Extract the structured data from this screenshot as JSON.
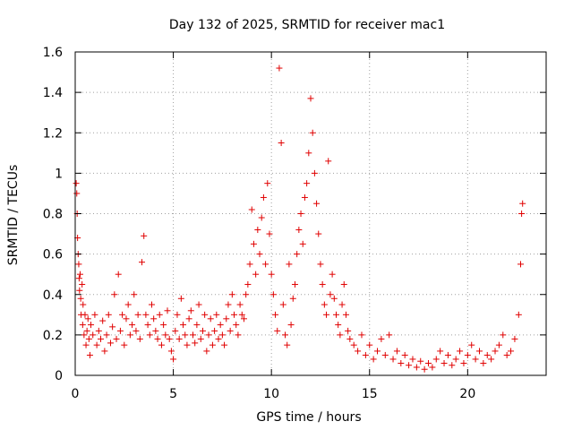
{
  "chart_data": {
    "type": "scatter",
    "title": "Day 132 of 2025, SRMTID for receiver mac1",
    "xlabel": "GPS time / hours",
    "ylabel": "SRMTID / TECUs",
    "xlim": [
      0,
      24
    ],
    "ylim": [
      0,
      1.6
    ],
    "xticks": [
      "0",
      "5",
      "10",
      "15",
      "20"
    ],
    "yticks": [
      "0",
      "0.2",
      "0.4",
      "0.6",
      "0.8",
      "1",
      "1.2",
      "1.4",
      "1.6"
    ],
    "grid": true,
    "marker": "+",
    "color": "#e00000",
    "series": [
      {
        "name": "SRMTID mac1",
        "points": [
          [
            0.05,
            0.95
          ],
          [
            0.08,
            0.9
          ],
          [
            0.1,
            0.8
          ],
          [
            0.12,
            0.68
          ],
          [
            0.15,
            0.6
          ],
          [
            0.18,
            0.55
          ],
          [
            0.2,
            0.48
          ],
          [
            0.22,
            0.42
          ],
          [
            0.25,
            0.5
          ],
          [
            0.28,
            0.38
          ],
          [
            0.3,
            0.3
          ],
          [
            0.35,
            0.45
          ],
          [
            0.38,
            0.25
          ],
          [
            0.4,
            0.35
          ],
          [
            0.45,
            0.2
          ],
          [
            0.5,
            0.3
          ],
          [
            0.55,
            0.15
          ],
          [
            0.6,
            0.22
          ],
          [
            0.65,
            0.28
          ],
          [
            0.7,
            0.18
          ],
          [
            0.75,
            0.1
          ],
          [
            0.8,
            0.25
          ],
          [
            0.9,
            0.2
          ],
          [
            1.0,
            0.3
          ],
          [
            1.1,
            0.15
          ],
          [
            1.2,
            0.22
          ],
          [
            1.3,
            0.18
          ],
          [
            1.4,
            0.27
          ],
          [
            1.5,
            0.12
          ],
          [
            1.6,
            0.2
          ],
          [
            1.7,
            0.3
          ],
          [
            1.8,
            0.16
          ],
          [
            1.9,
            0.24
          ],
          [
            2.0,
            0.4
          ],
          [
            2.1,
            0.18
          ],
          [
            2.2,
            0.5
          ],
          [
            2.3,
            0.22
          ],
          [
            2.4,
            0.3
          ],
          [
            2.5,
            0.15
          ],
          [
            2.6,
            0.28
          ],
          [
            2.7,
            0.35
          ],
          [
            2.8,
            0.2
          ],
          [
            2.9,
            0.25
          ],
          [
            3.0,
            0.4
          ],
          [
            3.1,
            0.22
          ],
          [
            3.2,
            0.3
          ],
          [
            3.3,
            0.18
          ],
          [
            3.4,
            0.56
          ],
          [
            3.5,
            0.69
          ],
          [
            3.6,
            0.3
          ],
          [
            3.7,
            0.25
          ],
          [
            3.8,
            0.2
          ],
          [
            3.9,
            0.35
          ],
          [
            4.0,
            0.28
          ],
          [
            4.1,
            0.22
          ],
          [
            4.2,
            0.18
          ],
          [
            4.3,
            0.3
          ],
          [
            4.4,
            0.15
          ],
          [
            4.5,
            0.25
          ],
          [
            4.6,
            0.2
          ],
          [
            4.7,
            0.32
          ],
          [
            4.8,
            0.18
          ],
          [
            4.9,
            0.12
          ],
          [
            5.0,
            0.08
          ],
          [
            5.1,
            0.22
          ],
          [
            5.2,
            0.3
          ],
          [
            5.3,
            0.18
          ],
          [
            5.4,
            0.38
          ],
          [
            5.5,
            0.25
          ],
          [
            5.6,
            0.2
          ],
          [
            5.7,
            0.15
          ],
          [
            5.8,
            0.28
          ],
          [
            5.9,
            0.32
          ],
          [
            6.0,
            0.2
          ],
          [
            6.1,
            0.16
          ],
          [
            6.2,
            0.25
          ],
          [
            6.3,
            0.35
          ],
          [
            6.4,
            0.18
          ],
          [
            6.5,
            0.22
          ],
          [
            6.6,
            0.3
          ],
          [
            6.7,
            0.12
          ],
          [
            6.8,
            0.2
          ],
          [
            6.9,
            0.28
          ],
          [
            7.0,
            0.15
          ],
          [
            7.1,
            0.22
          ],
          [
            7.2,
            0.3
          ],
          [
            7.3,
            0.18
          ],
          [
            7.4,
            0.25
          ],
          [
            7.5,
            0.2
          ],
          [
            7.6,
            0.15
          ],
          [
            7.7,
            0.28
          ],
          [
            7.8,
            0.35
          ],
          [
            7.9,
            0.22
          ],
          [
            8.0,
            0.4
          ],
          [
            8.1,
            0.3
          ],
          [
            8.2,
            0.25
          ],
          [
            8.3,
            0.2
          ],
          [
            8.4,
            0.35
          ],
          [
            8.5,
            0.3
          ],
          [
            8.6,
            0.28
          ],
          [
            8.7,
            0.4
          ],
          [
            8.8,
            0.45
          ],
          [
            8.9,
            0.55
          ],
          [
            9.0,
            0.82
          ],
          [
            9.1,
            0.65
          ],
          [
            9.2,
            0.5
          ],
          [
            9.3,
            0.72
          ],
          [
            9.4,
            0.6
          ],
          [
            9.5,
            0.78
          ],
          [
            9.6,
            0.88
          ],
          [
            9.7,
            0.55
          ],
          [
            9.8,
            0.95
          ],
          [
            9.9,
            0.7
          ],
          [
            10.0,
            0.5
          ],
          [
            10.1,
            0.4
          ],
          [
            10.2,
            0.3
          ],
          [
            10.3,
            0.22
          ],
          [
            10.4,
            1.52
          ],
          [
            10.5,
            1.15
          ],
          [
            10.6,
            0.35
          ],
          [
            10.7,
            0.2
          ],
          [
            10.8,
            0.15
          ],
          [
            10.9,
            0.55
          ],
          [
            11.0,
            0.25
          ],
          [
            11.1,
            0.38
          ],
          [
            11.2,
            0.45
          ],
          [
            11.3,
            0.6
          ],
          [
            11.4,
            0.72
          ],
          [
            11.5,
            0.8
          ],
          [
            11.6,
            0.65
          ],
          [
            11.7,
            0.88
          ],
          [
            11.8,
            0.95
          ],
          [
            11.9,
            1.1
          ],
          [
            12.0,
            1.37
          ],
          [
            12.1,
            1.2
          ],
          [
            12.2,
            1.0
          ],
          [
            12.3,
            0.85
          ],
          [
            12.4,
            0.7
          ],
          [
            12.5,
            0.55
          ],
          [
            12.6,
            0.45
          ],
          [
            12.7,
            0.35
          ],
          [
            12.8,
            0.3
          ],
          [
            12.9,
            1.06
          ],
          [
            13.0,
            0.4
          ],
          [
            13.1,
            0.5
          ],
          [
            13.2,
            0.38
          ],
          [
            13.3,
            0.3
          ],
          [
            13.4,
            0.25
          ],
          [
            13.5,
            0.2
          ],
          [
            13.6,
            0.35
          ],
          [
            13.7,
            0.45
          ],
          [
            13.8,
            0.3
          ],
          [
            13.9,
            0.22
          ],
          [
            14.0,
            0.18
          ],
          [
            14.2,
            0.15
          ],
          [
            14.4,
            0.12
          ],
          [
            14.6,
            0.2
          ],
          [
            14.8,
            0.1
          ],
          [
            15.0,
            0.15
          ],
          [
            15.2,
            0.08
          ],
          [
            15.4,
            0.12
          ],
          [
            15.6,
            0.18
          ],
          [
            15.8,
            0.1
          ],
          [
            16.0,
            0.2
          ],
          [
            16.2,
            0.08
          ],
          [
            16.4,
            0.12
          ],
          [
            16.6,
            0.06
          ],
          [
            16.8,
            0.1
          ],
          [
            17.0,
            0.05
          ],
          [
            17.2,
            0.08
          ],
          [
            17.4,
            0.04
          ],
          [
            17.6,
            0.07
          ],
          [
            17.8,
            0.03
          ],
          [
            18.0,
            0.06
          ],
          [
            18.2,
            0.04
          ],
          [
            18.4,
            0.08
          ],
          [
            18.6,
            0.12
          ],
          [
            18.8,
            0.06
          ],
          [
            19.0,
            0.1
          ],
          [
            19.2,
            0.05
          ],
          [
            19.4,
            0.08
          ],
          [
            19.6,
            0.12
          ],
          [
            19.8,
            0.06
          ],
          [
            20.0,
            0.1
          ],
          [
            20.2,
            0.15
          ],
          [
            20.4,
            0.08
          ],
          [
            20.6,
            0.12
          ],
          [
            20.8,
            0.06
          ],
          [
            21.0,
            0.1
          ],
          [
            21.2,
            0.08
          ],
          [
            21.4,
            0.12
          ],
          [
            21.6,
            0.15
          ],
          [
            21.8,
            0.2
          ],
          [
            22.0,
            0.1
          ],
          [
            22.2,
            0.12
          ],
          [
            22.4,
            0.18
          ],
          [
            22.6,
            0.3
          ],
          [
            22.7,
            0.55
          ],
          [
            22.75,
            0.8
          ],
          [
            22.8,
            0.85
          ]
        ]
      }
    ]
  }
}
